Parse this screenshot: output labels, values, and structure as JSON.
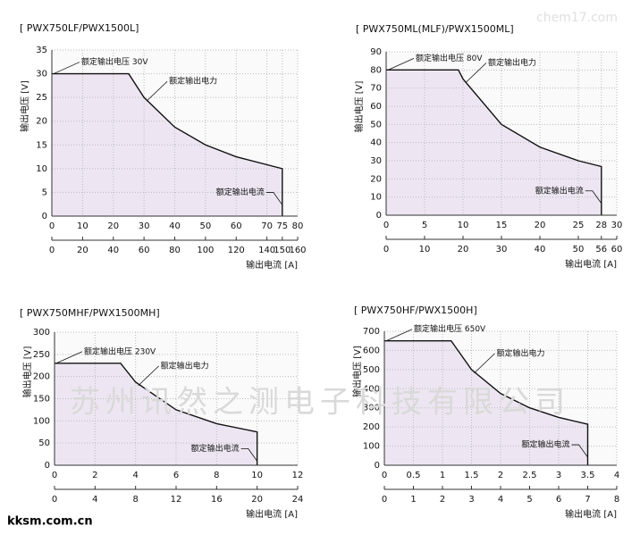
{
  "watermark": "苏州讯然之测电子科技有限公司",
  "watermark_top": "chem17.com",
  "footer": "kksm.com.cn",
  "chart_data": [
    {
      "type": "line",
      "title": "[ PWX750LF/PWX1500L]",
      "y_label": "输出电压 [V]",
      "x_label": "输出电流 [A]",
      "annotations": [
        "额定输出电压 30V",
        "额定输出电力",
        "额定输出电流"
      ],
      "x": [
        0,
        25,
        30,
        40,
        50,
        60,
        75,
        75
      ],
      "values": [
        30,
        30,
        25,
        18.75,
        15,
        12.5,
        10,
        0
      ],
      "color": "#111111",
      "fill": "#ede6f2",
      "xlim": [
        0,
        80
      ],
      "xticks": [
        0,
        10,
        20,
        30,
        40,
        50,
        60,
        70,
        75,
        80
      ],
      "x2lim": [
        0,
        160
      ],
      "x2ticks": [
        0,
        20,
        40,
        60,
        80,
        100,
        120,
        140,
        150,
        160
      ],
      "ylim": [
        0,
        35
      ],
      "yticks": [
        0,
        5,
        10,
        15,
        20,
        25,
        30,
        35
      ],
      "grid": true
    },
    {
      "type": "line",
      "title": "[ PWX750ML(MLF)/PWX1500ML]",
      "y_label": "输出电压 [V]",
      "x_label": "输出电流 [A]",
      "annotations": [
        "额定输出电压 80V",
        "额定输出电力",
        "额定输出电流"
      ],
      "x": [
        0,
        9.4,
        10,
        15,
        20,
        25,
        28,
        28
      ],
      "values": [
        80,
        80,
        75,
        50,
        37.5,
        30,
        26.8,
        0
      ],
      "color": "#111111",
      "fill": "#ede6f2",
      "xlim": [
        0,
        30
      ],
      "xticks": [
        0,
        5,
        10,
        15,
        20,
        25,
        28,
        30
      ],
      "x2lim": [
        0,
        60
      ],
      "x2ticks": [
        0,
        10,
        20,
        30,
        40,
        50,
        56,
        60
      ],
      "ylim": [
        0,
        90
      ],
      "yticks": [
        0,
        10,
        20,
        30,
        40,
        50,
        60,
        70,
        80,
        90
      ],
      "grid": true
    },
    {
      "type": "line",
      "title": "[ PWX750MHF/PWX1500MH]",
      "y_label": "输出电压 [V]",
      "x_label": "输出电流 [A]",
      "annotations": [
        "额定输出电压 230V",
        "额定输出电力",
        "额定输出电流"
      ],
      "x": [
        0,
        3.26,
        4,
        6,
        8,
        10,
        10
      ],
      "values": [
        230,
        230,
        187.5,
        125,
        93.75,
        75,
        0
      ],
      "color": "#111111",
      "fill": "#ede6f2",
      "xlim": [
        0,
        12
      ],
      "xticks": [
        0,
        2,
        4,
        6,
        8,
        10,
        12
      ],
      "x2lim": [
        0,
        24
      ],
      "x2ticks": [
        0,
        4,
        8,
        12,
        16,
        20,
        24
      ],
      "ylim": [
        0,
        300
      ],
      "yticks": [
        0,
        50,
        100,
        150,
        200,
        250,
        300
      ],
      "grid": true
    },
    {
      "type": "line",
      "title": "[ PWX750HF/PWX1500H]",
      "y_label": "输出电压 [V]",
      "x_label": "输出电流 [A]",
      "annotations": [
        "额定输出电压 650V",
        "额定输出电力",
        "额定输出电流"
      ],
      "x": [
        0,
        1.15,
        1.5,
        2,
        2.5,
        3,
        3.5,
        3.5
      ],
      "values": [
        650,
        650,
        500,
        375,
        300,
        250,
        214.3,
        0
      ],
      "color": "#111111",
      "fill": "#ede6f2",
      "xlim": [
        0,
        4
      ],
      "xticks": [
        0,
        0.5,
        1,
        1.5,
        2,
        2.5,
        3,
        3.5,
        4
      ],
      "x2lim": [
        0,
        8
      ],
      "x2ticks": [
        0,
        1,
        2,
        3,
        4,
        5,
        6,
        7,
        8
      ],
      "ylim": [
        0,
        700
      ],
      "yticks": [
        0,
        100,
        200,
        300,
        400,
        500,
        600,
        700
      ],
      "grid": true
    }
  ]
}
